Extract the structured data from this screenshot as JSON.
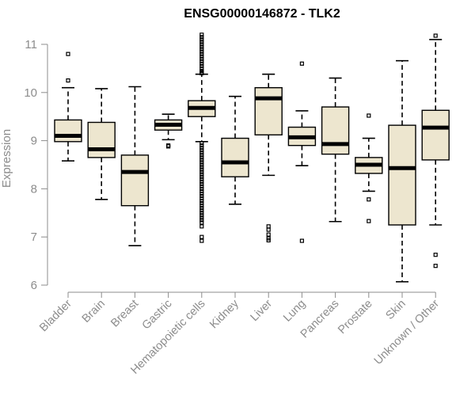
{
  "chart_data": {
    "type": "box",
    "title": "ENSG00000146872 - TLK2",
    "xlabel": "",
    "ylabel": "Expression",
    "ylim": [
      6,
      11
    ],
    "yticks": [
      "6",
      "7",
      "8",
      "9",
      "10",
      "11"
    ],
    "grid": false,
    "colors": {
      "box_fill": "#ede6cf",
      "line": "#000000",
      "axis": "#8c8c8c"
    },
    "categories": [
      "Bladder",
      "Brain",
      "Breast",
      "Gastric",
      "Hematopoietic cells",
      "Kidney",
      "Liver",
      "Lung",
      "Pancreas",
      "Prostate",
      "Skin",
      "Unknown / Other"
    ],
    "boxes": [
      {
        "whisker_low": 8.58,
        "q1": 8.98,
        "median": 9.1,
        "q3": 9.43,
        "whisker_high": 10.1,
        "outliers": [
          10.8,
          10.25
        ]
      },
      {
        "whisker_low": 7.78,
        "q1": 8.65,
        "median": 8.82,
        "q3": 9.38,
        "whisker_high": 10.08,
        "outliers": []
      },
      {
        "whisker_low": 6.82,
        "q1": 7.65,
        "median": 8.35,
        "q3": 8.7,
        "whisker_high": 10.12,
        "outliers": []
      },
      {
        "whisker_low": 9.02,
        "q1": 9.22,
        "median": 9.33,
        "q3": 9.43,
        "whisker_high": 9.55,
        "outliers": [
          8.9,
          8.88
        ]
      },
      {
        "whisker_low": 8.98,
        "q1": 9.5,
        "median": 9.68,
        "q3": 9.83,
        "whisker_high": 10.38,
        "outliers": [
          11.2,
          11.15,
          11.1,
          11.05,
          11.0,
          10.95,
          10.9,
          10.85,
          10.8,
          10.75,
          10.7,
          10.65,
          10.6,
          10.55,
          10.5,
          10.45,
          10.4,
          10.42,
          8.95,
          8.9,
          8.85,
          8.8,
          8.75,
          8.7,
          8.65,
          8.6,
          8.55,
          8.5,
          8.45,
          8.4,
          8.35,
          8.3,
          8.25,
          8.2,
          8.15,
          8.1,
          8.05,
          8.0,
          7.95,
          7.9,
          7.85,
          7.8,
          7.75,
          7.7,
          7.65,
          7.6,
          7.55,
          7.5,
          7.45,
          7.4,
          7.35,
          7.3,
          7.22,
          7.0,
          6.92
        ]
      },
      {
        "whisker_low": 7.68,
        "q1": 8.25,
        "median": 8.55,
        "q3": 9.05,
        "whisker_high": 9.92,
        "outliers": []
      },
      {
        "whisker_low": 8.28,
        "q1": 9.12,
        "median": 9.88,
        "q3": 10.1,
        "whisker_high": 10.38,
        "outliers": [
          7.22,
          7.15,
          7.05,
          6.97,
          6.93
        ]
      },
      {
        "whisker_low": 8.48,
        "q1": 8.9,
        "median": 9.07,
        "q3": 9.28,
        "whisker_high": 9.62,
        "outliers": [
          10.6,
          6.92
        ]
      },
      {
        "whisker_low": 7.32,
        "q1": 8.72,
        "median": 8.93,
        "q3": 9.7,
        "whisker_high": 10.3,
        "outliers": []
      },
      {
        "whisker_low": 7.95,
        "q1": 8.32,
        "median": 8.5,
        "q3": 8.65,
        "whisker_high": 9.05,
        "outliers": [
          9.52,
          7.78,
          7.33
        ]
      },
      {
        "whisker_low": 6.07,
        "q1": 7.25,
        "median": 8.43,
        "q3": 9.32,
        "whisker_high": 10.66,
        "outliers": []
      },
      {
        "whisker_low": 7.25,
        "q1": 8.6,
        "median": 9.27,
        "q3": 9.63,
        "whisker_high": 11.1,
        "outliers": [
          11.18,
          6.63,
          6.4
        ]
      }
    ]
  }
}
